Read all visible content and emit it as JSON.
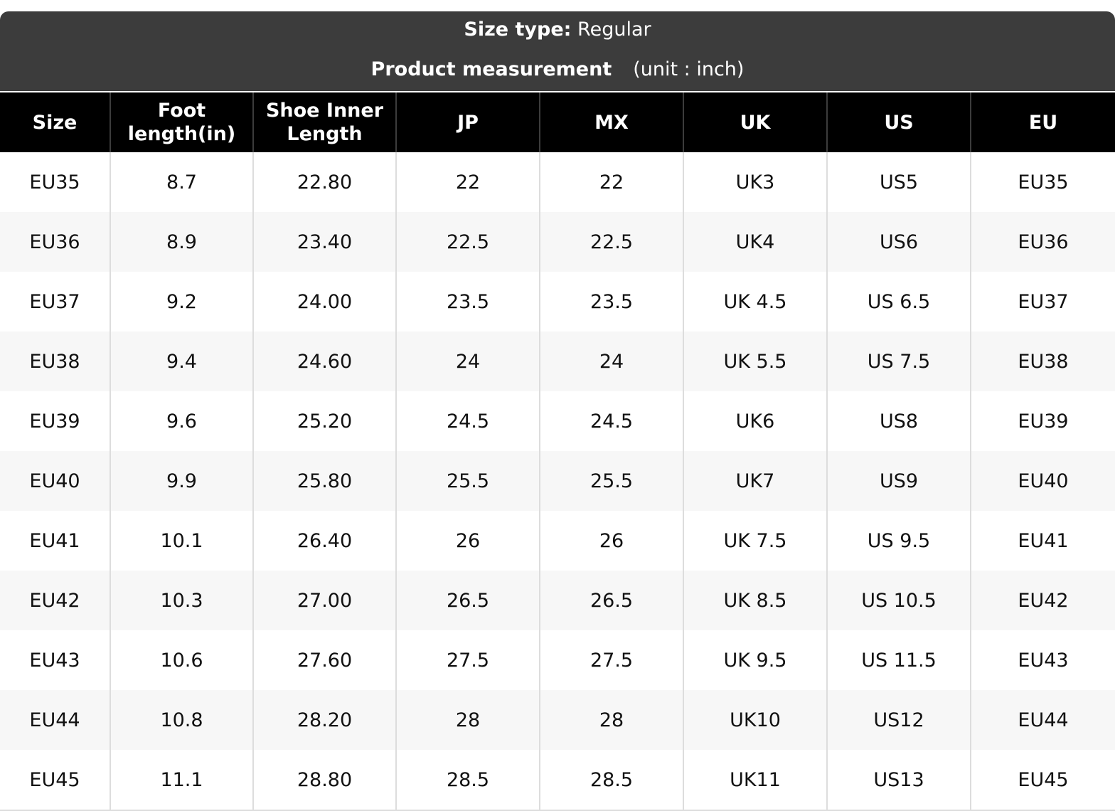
{
  "header": {
    "size_type_label": "Size type:",
    "size_type": "Regular",
    "title": "Product measurement",
    "unit": "(unit : inch)"
  },
  "table": {
    "columns": [
      "Size",
      "Foot length(in)",
      "Shoe Inner Length",
      "JP",
      "MX",
      "UK",
      "US",
      "EU"
    ],
    "rows": [
      [
        "EU35",
        "8.7",
        "22.80",
        "22",
        "22",
        "UK3",
        "US5",
        "EU35"
      ],
      [
        "EU36",
        "8.9",
        "23.40",
        "22.5",
        "22.5",
        "UK4",
        "US6",
        "EU36"
      ],
      [
        "EU37",
        "9.2",
        "24.00",
        "23.5",
        "23.5",
        "UK 4.5",
        "US 6.5",
        "EU37"
      ],
      [
        "EU38",
        "9.4",
        "24.60",
        "24",
        "24",
        "UK 5.5",
        "US 7.5",
        "EU38"
      ],
      [
        "EU39",
        "9.6",
        "25.20",
        "24.5",
        "24.5",
        "UK6",
        "US8",
        "EU39"
      ],
      [
        "EU40",
        "9.9",
        "25.80",
        "25.5",
        "25.5",
        "UK7",
        "US9",
        "EU40"
      ],
      [
        "EU41",
        "10.1",
        "26.40",
        "26",
        "26",
        "UK 7.5",
        "US 9.5",
        "EU41"
      ],
      [
        "EU42",
        "10.3",
        "27.00",
        "26.5",
        "26.5",
        "UK 8.5",
        "US 10.5",
        "EU42"
      ],
      [
        "EU43",
        "10.6",
        "27.60",
        "27.5",
        "27.5",
        "UK 9.5",
        "US 11.5",
        "EU43"
      ],
      [
        "EU44",
        "10.8",
        "28.20",
        "28",
        "28",
        "UK10",
        "US12",
        "EU44"
      ],
      [
        "EU45",
        "11.1",
        "28.80",
        "28.5",
        "28.5",
        "UK11",
        "US13",
        "EU45"
      ]
    ]
  }
}
